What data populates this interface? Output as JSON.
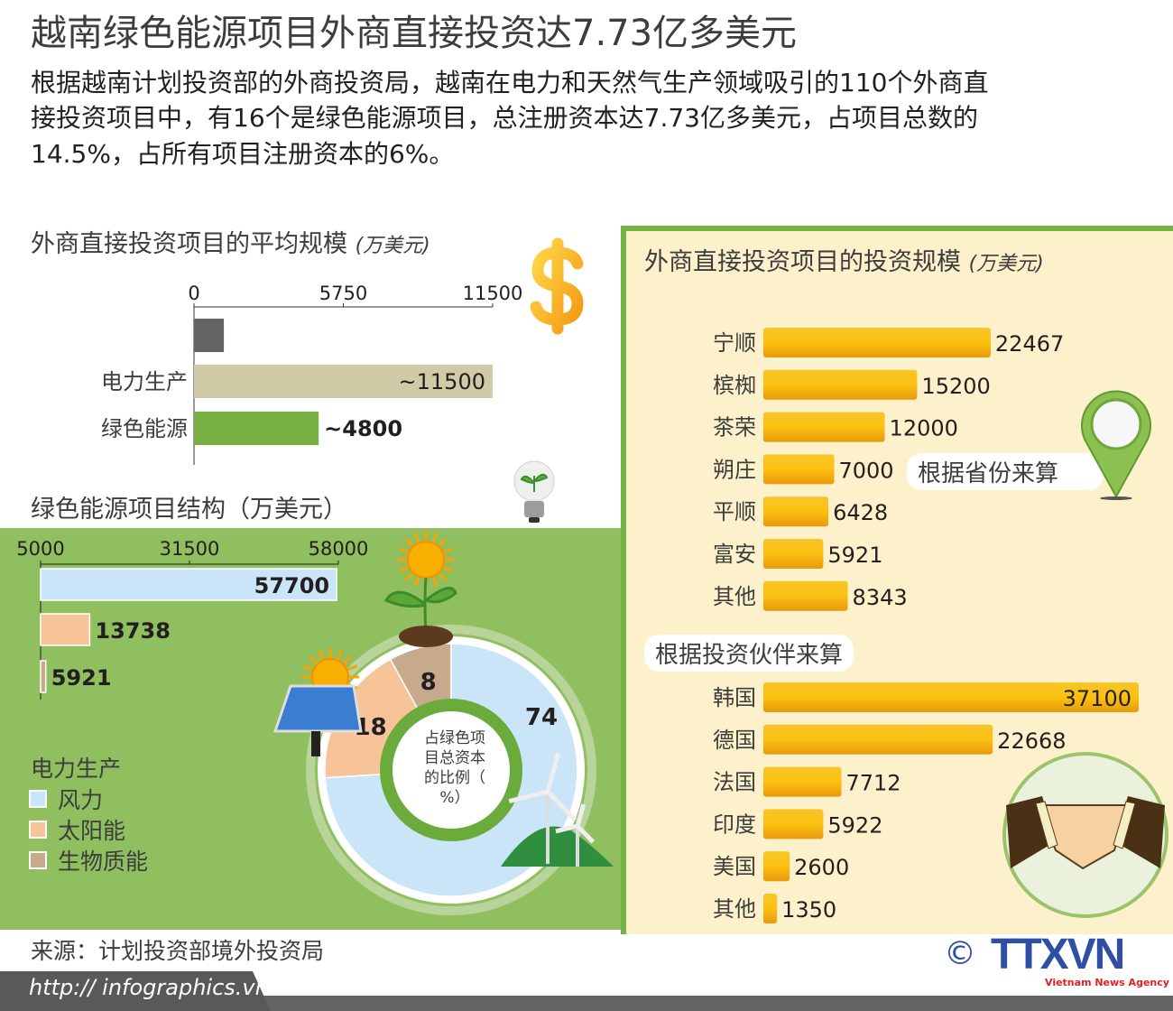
{
  "header": {
    "title": "越南绿色能源项目外商直接投资达7.73亿多美元",
    "intro_lines": [
      "根据越南计划投资部的外商投资局，越南在电力和天然气生产领域吸引的110个外商直",
      "接投资项目中，有16个是绿色能源项目，总注册资本达7.73亿多美元，占项目总数的",
      "14.5%，占所有项目注册资本的6%。"
    ]
  },
  "colors": {
    "green_panel": "#8fbf5f",
    "cream_panel": "#fdf1cb",
    "gold_bar": "#f4b400",
    "wind": "#c9e5f7",
    "solar": "#f7c49a",
    "biomass": "#c7a98b",
    "power_bar": "#cecba6",
    "green_bar": "#76b043",
    "grey_bar": "#636466",
    "logo_blue": "#2e4fa3",
    "logo_red": "#e31e24"
  },
  "chart_data": [
    {
      "type": "bar",
      "title": "外商直接投资项目的平均规模",
      "unit": "(万美元)",
      "categories": [
        "",
        "电力生产",
        "绿色能源"
      ],
      "values": [
        1150,
        11500,
        4800
      ],
      "data_labels": [
        "",
        "~11500",
        "~4800"
      ],
      "ticks": [
        "0",
        "5750",
        "11500"
      ],
      "xlim": [
        0,
        11500
      ]
    },
    {
      "type": "bar",
      "title": "绿色能源项目结构",
      "unit": "（万美元）",
      "categories": [
        "风力",
        "太阳能",
        "生物质能"
      ],
      "values": [
        57700,
        13738,
        5921
      ],
      "data_labels": [
        "57700",
        "13738",
        "5921"
      ],
      "ticks": [
        "5000",
        "31500",
        "58000"
      ],
      "xlim": [
        5000,
        58000
      ],
      "legend_title": "电力生产"
    },
    {
      "type": "pie",
      "center_label": "占绿色项目总资本的比例（%）",
      "center_lines": [
        "占绿色项",
        "目总资本",
        "的比例（",
        "%）"
      ],
      "categories": [
        "生物质能",
        "太阳能",
        "风力"
      ],
      "values": [
        8,
        18,
        74
      ]
    },
    {
      "type": "bar",
      "title": "外商直接投资项目的投资规模",
      "unit": "(万美元)",
      "group_label": "根据省份来算",
      "categories": [
        "宁顺",
        "槟椥",
        "茶荣",
        "朔庄",
        "平顺",
        "富安",
        "其他"
      ],
      "values": [
        22467,
        15200,
        12000,
        7000,
        6428,
        5921,
        8343
      ]
    },
    {
      "type": "bar",
      "group_label": "根据投资伙伴来算",
      "categories": [
        "韩国",
        "德国",
        "法国",
        "印度",
        "美国",
        "其他"
      ],
      "values": [
        37100,
        22668,
        7712,
        5922,
        2600,
        1350
      ]
    }
  ],
  "footer": {
    "source": "来源：计划投资部境外投资局",
    "url": "http:// infographics.vn",
    "copyright": "©",
    "logo": "TTXVN",
    "logo_sub": "Vietnam News Agency"
  }
}
